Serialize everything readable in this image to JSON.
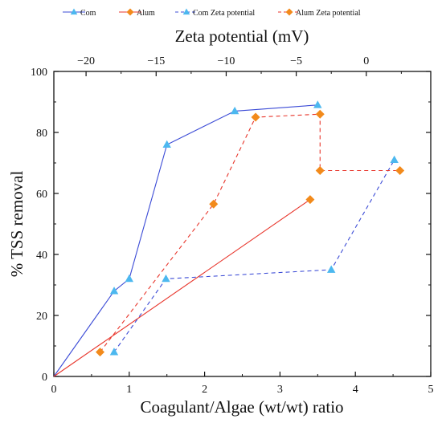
{
  "chart_data": {
    "type": "scatter",
    "bottom_axis": {
      "label": "Coagulant/Algae (wt/wt) ratio",
      "range": [
        0,
        5
      ],
      "ticks": [
        "0",
        "1",
        "2",
        "3",
        "4",
        "5"
      ]
    },
    "top_axis": {
      "label": "Zeta potential (mV)",
      "range": [
        -22.3,
        4.6
      ],
      "ticks": [
        "−20",
        "−15",
        "−10",
        "−5",
        "0"
      ]
    },
    "left_axis": {
      "label": "% TSS removal",
      "range": [
        0,
        100
      ],
      "ticks": [
        "0",
        "20",
        "40",
        "60",
        "80",
        "100"
      ]
    },
    "legend": {
      "placement": "top",
      "items": [
        "Com",
        "Alum",
        "Com Zeta potential",
        "Alum Zeta potential"
      ]
    },
    "series": [
      {
        "name": "Com",
        "axis": "bottom",
        "color": "#3b4bd6",
        "marker": "triangle",
        "marker_color": "#4cb8ef",
        "line": "solid",
        "points": [
          [
            0,
            0
          ],
          [
            0.8,
            28
          ],
          [
            1.0,
            32
          ],
          [
            1.5,
            76
          ],
          [
            2.4,
            87
          ],
          [
            3.5,
            89
          ]
        ]
      },
      {
        "name": "Alum",
        "axis": "bottom",
        "color": "#e8352b",
        "marker": "diamond",
        "marker_color": "#f28a1b",
        "line": "solid",
        "points": [
          [
            0,
            0
          ],
          [
            3.4,
            58
          ]
        ]
      },
      {
        "name": "Com Zeta potential",
        "axis": "top",
        "color": "#3b4bd6",
        "marker": "triangle",
        "marker_color": "#4cb8ef",
        "line": "dashed",
        "points": [
          [
            -18,
            8
          ],
          [
            -14.3,
            32
          ],
          [
            -2.5,
            35
          ],
          [
            2,
            71
          ]
        ]
      },
      {
        "name": "Alum Zeta potential",
        "axis": "top",
        "color": "#e8352b",
        "marker": "diamond",
        "marker_color": "#f28a1b",
        "line": "dashed",
        "points": [
          [
            -19,
            8
          ],
          [
            -10.9,
            56.5
          ],
          [
            -7.9,
            85
          ],
          [
            -3.3,
            86
          ],
          [
            -3.3,
            67.5
          ],
          [
            2.4,
            67.5
          ]
        ]
      }
    ]
  }
}
